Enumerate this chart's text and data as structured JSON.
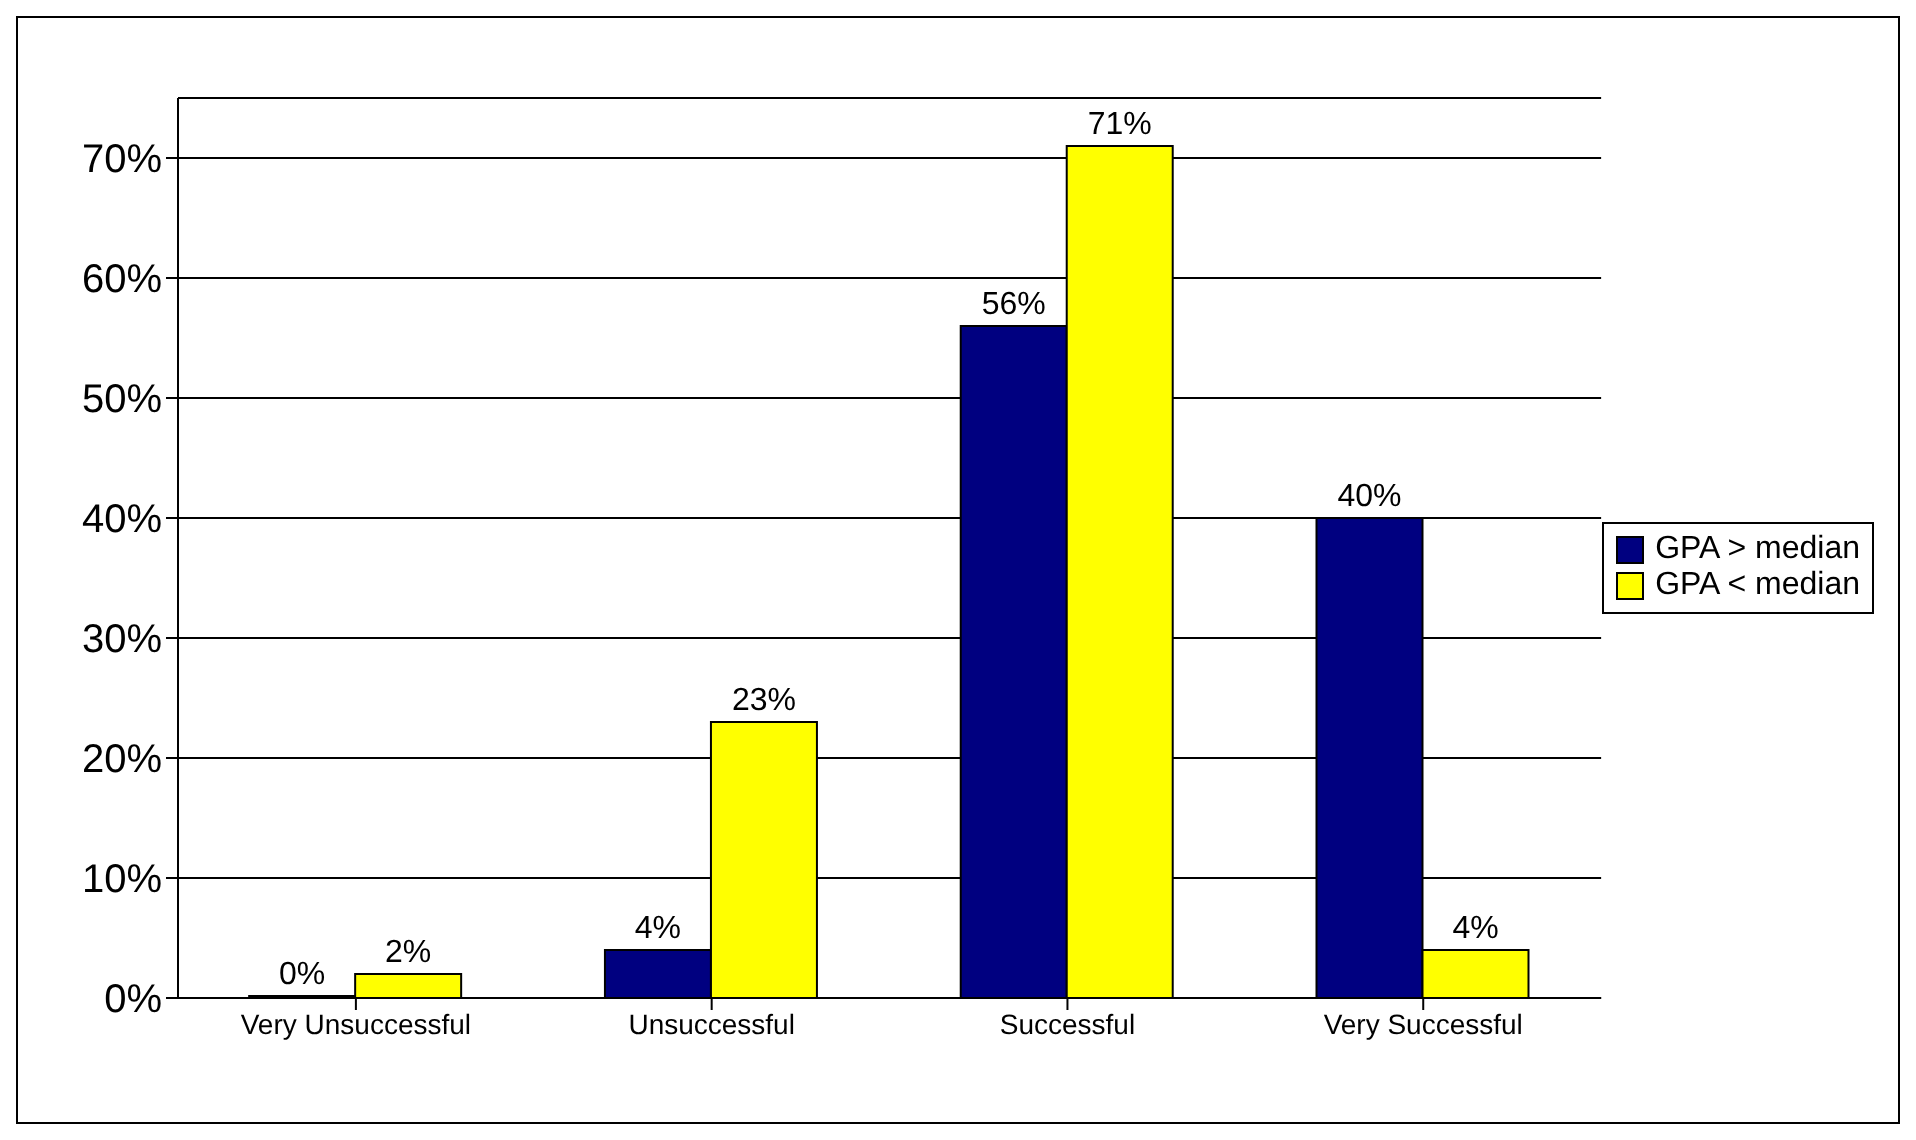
{
  "chart_data": {
    "type": "bar",
    "categories": [
      "Very Unsuccessful",
      "Unsuccessful",
      "Successful",
      "Very Successful"
    ],
    "series": [
      {
        "name": "GPA > median",
        "color": "#000080",
        "values": [
          0,
          4,
          56,
          40
        ],
        "value_labels": [
          "0%",
          "4%",
          "56%",
          "40%"
        ]
      },
      {
        "name": "GPA < median",
        "color": "#ffff00",
        "values": [
          2,
          23,
          71,
          4
        ],
        "value_labels": [
          "2%",
          "23%",
          "71%",
          "4%"
        ]
      }
    ],
    "ylim": [
      0,
      75
    ],
    "yticks": [
      {
        "value": 0,
        "label": "0%"
      },
      {
        "value": 10,
        "label": "10%"
      },
      {
        "value": 20,
        "label": "20%"
      },
      {
        "value": 30,
        "label": "30%"
      },
      {
        "value": 40,
        "label": "40%"
      },
      {
        "value": 50,
        "label": "50%"
      },
      {
        "value": 60,
        "label": "60%"
      },
      {
        "value": 70,
        "label": "70%"
      }
    ],
    "grid": "y",
    "legend": "right"
  }
}
